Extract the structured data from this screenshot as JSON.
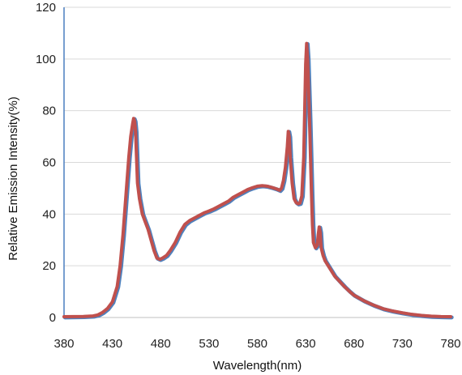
{
  "chart_data": {
    "type": "line",
    "title": "",
    "xlabel": "Wavelength(nm)",
    "ylabel": "Relative Emission Intensity(%)",
    "xlim": [
      380,
      780
    ],
    "ylim": [
      0,
      120
    ],
    "x_ticks": [
      "380",
      "430",
      "480",
      "530",
      "580",
      "630",
      "680",
      "730",
      "780"
    ],
    "y_ticks": [
      "0",
      "20",
      "40",
      "60",
      "80",
      "100",
      "120"
    ],
    "grid": "horizontal",
    "legend": "none",
    "colors": {
      "grid": "#d9d9d9",
      "y_axis": "#4a7ebf",
      "x_axis": "#bfbfbf",
      "series_back": "#4f81bd",
      "series_front": "#c0504d"
    },
    "series": [
      {
        "points": [
          [
            380,
            0.3
          ],
          [
            400,
            0.4
          ],
          [
            410,
            0.6
          ],
          [
            415,
            1
          ],
          [
            420,
            2
          ],
          [
            425,
            3.5
          ],
          [
            430,
            6
          ],
          [
            435,
            12
          ],
          [
            438,
            20
          ],
          [
            441,
            32
          ],
          [
            443,
            42
          ],
          [
            445,
            52
          ],
          [
            447,
            62
          ],
          [
            449,
            70
          ],
          [
            451,
            75
          ],
          [
            452,
            77
          ],
          [
            453,
            76
          ],
          [
            454,
            72
          ],
          [
            455,
            62
          ],
          [
            456,
            52
          ],
          [
            458,
            46
          ],
          [
            461,
            40
          ],
          [
            464,
            37
          ],
          [
            467,
            34
          ],
          [
            470,
            30
          ],
          [
            473,
            26
          ],
          [
            476,
            23
          ],
          [
            479,
            22.5
          ],
          [
            482,
            23
          ],
          [
            486,
            24
          ],
          [
            490,
            26
          ],
          [
            495,
            29
          ],
          [
            500,
            33
          ],
          [
            505,
            36
          ],
          [
            510,
            37.5
          ],
          [
            515,
            38.5
          ],
          [
            520,
            39.5
          ],
          [
            525,
            40.5
          ],
          [
            530,
            41.2
          ],
          [
            535,
            42
          ],
          [
            540,
            43
          ],
          [
            545,
            44
          ],
          [
            550,
            45
          ],
          [
            555,
            46.5
          ],
          [
            560,
            47.5
          ],
          [
            565,
            48.5
          ],
          [
            570,
            49.5
          ],
          [
            575,
            50.2
          ],
          [
            580,
            50.8
          ],
          [
            585,
            51
          ],
          [
            590,
            50.8
          ],
          [
            595,
            50.3
          ],
          [
            600,
            49.7
          ],
          [
            603,
            49.2
          ],
          [
            605,
            50
          ],
          [
            607,
            53
          ],
          [
            609,
            58
          ],
          [
            611,
            66
          ],
          [
            612,
            72
          ],
          [
            613,
            70
          ],
          [
            614,
            62
          ],
          [
            616,
            52
          ],
          [
            618,
            46
          ],
          [
            620,
            44.5
          ],
          [
            622,
            44
          ],
          [
            624,
            44.2
          ],
          [
            626,
            47
          ],
          [
            628,
            62
          ],
          [
            629,
            80
          ],
          [
            630,
            98
          ],
          [
            631,
            106
          ],
          [
            632,
            100
          ],
          [
            633,
            88
          ],
          [
            634,
            76
          ],
          [
            635,
            62
          ],
          [
            636,
            48
          ],
          [
            637,
            36
          ],
          [
            638,
            29
          ],
          [
            640,
            27
          ],
          [
            642,
            28
          ],
          [
            643,
            32
          ],
          [
            644,
            35
          ],
          [
            645,
            33
          ],
          [
            646,
            27
          ],
          [
            648,
            24
          ],
          [
            650,
            22
          ],
          [
            655,
            19
          ],
          [
            660,
            16
          ],
          [
            665,
            14
          ],
          [
            670,
            12
          ],
          [
            675,
            10.2
          ],
          [
            680,
            8.6
          ],
          [
            690,
            6.5
          ],
          [
            700,
            4.8
          ],
          [
            710,
            3.4
          ],
          [
            720,
            2.5
          ],
          [
            730,
            1.8
          ],
          [
            740,
            1.2
          ],
          [
            750,
            0.8
          ],
          [
            760,
            0.5
          ],
          [
            770,
            0.35
          ],
          [
            780,
            0.3
          ]
        ]
      }
    ]
  }
}
